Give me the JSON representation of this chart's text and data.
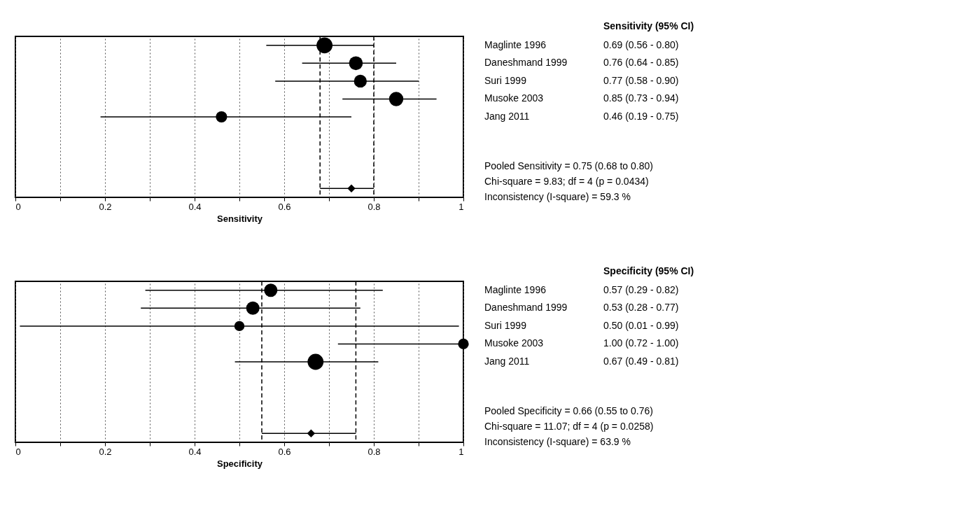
{
  "chart_data": [
    {
      "type": "scatter",
      "orientation": "horizontal",
      "xlabel": "Sensitivity",
      "categories": [
        "Maglinte 1996",
        "Daneshmand 1999",
        "Suri 1999",
        "Musoke 2003",
        "Jang 2011",
        null,
        null,
        null,
        null
      ],
      "series": [
        {
          "type": "bubble",
          "color": "#000000",
          "marker": "circle",
          "values": [
            0.69,
            0.76,
            0.77,
            0.85,
            0.46,
            null,
            null,
            null,
            null
          ],
          "sizes": [
            1,
            0.75,
            0.65,
            0.8,
            0.5,
            null,
            null,
            null,
            null
          ],
          "errors": [
            [
              0.56,
              0.8
            ],
            [
              0.64,
              0.85
            ],
            [
              0.58,
              0.9
            ],
            [
              0.73,
              0.94
            ],
            [
              0.19,
              0.75
            ],
            null,
            null,
            null,
            null
          ],
          "value_labels": [
            "0.69    (0.56 - 0.80)",
            "0.76    (0.64 - 0.85)",
            "0.77    (0.58 - 0.90)",
            "0.85    (0.73 - 0.94)",
            "0.46    (0.19 - 0.75)",
            null,
            null,
            null,
            null
          ]
        },
        {
          "type": "scatter",
          "color": "#000000",
          "marker": "diamond",
          "values": [
            null,
            null,
            null,
            null,
            null,
            null,
            null,
            null,
            0.75
          ],
          "errors": [
            null,
            null,
            null,
            null,
            null,
            null,
            null,
            null,
            [
              0.68,
              0.8
            ]
          ]
        }
      ],
      "xlim": [
        0,
        1
      ],
      "xticks": [
        0,
        {
          "value": 0.1,
          "label": null
        },
        0.2,
        {
          "value": 0.3,
          "label": null
        },
        0.4,
        {
          "value": 0.5,
          "label": null
        },
        0.6,
        {
          "value": 0.7,
          "label": null
        },
        0.8,
        {
          "value": 0.9,
          "label": null
        },
        1
      ],
      "grid": "x",
      "tick_labels": "x",
      "ref_lines": [
        {
          "axis": "x",
          "value": 0.68,
          "line_style": "dashed",
          "color": "#000000"
        },
        {
          "axis": "x",
          "value": 0.8,
          "line_style": "dashed",
          "color": "#000000"
        }
      ],
      "annotations": [
        "Sensitivity (95% CI)",
        "Pooled Sensitivity = 0.75 (0.68 to 0.80)",
        "Chi-square = 9.83; df =  4 (p = 0.0434)",
        "Inconsistency (I-square) = 59.3 %"
      ]
    },
    {
      "type": "scatter",
      "orientation": "horizontal",
      "xlabel": "Specificity",
      "categories": [
        "Maglinte 1996",
        "Daneshmand 1999",
        "Suri 1999",
        "Musoke 2003",
        "Jang 2011",
        null,
        null,
        null,
        null
      ],
      "series": [
        {
          "type": "bubble",
          "color": "#000000",
          "marker": "circle",
          "values": [
            0.57,
            0.53,
            0.5,
            1.0,
            0.67,
            null,
            null,
            null,
            null
          ],
          "sizes": [
            0.7,
            0.7,
            0.4,
            0.45,
            1,
            null,
            null,
            null,
            null
          ],
          "errors": [
            [
              0.29,
              0.82
            ],
            [
              0.28,
              0.77
            ],
            [
              0.01,
              0.99
            ],
            [
              0.72,
              1.0
            ],
            [
              0.49,
              0.81
            ],
            null,
            null,
            null,
            null
          ],
          "value_labels": [
            "0.57    (0.29 - 0.82)",
            "0.53    (0.28 - 0.77)",
            "0.50    (0.01 - 0.99)",
            "1.00    (0.72 - 1.00)",
            "0.67    (0.49 - 0.81)",
            null,
            null,
            null,
            null
          ]
        },
        {
          "type": "scatter",
          "color": "#000000",
          "marker": "diamond",
          "values": [
            null,
            null,
            null,
            null,
            null,
            null,
            null,
            null,
            0.66
          ],
          "errors": [
            null,
            null,
            null,
            null,
            null,
            null,
            null,
            null,
            [
              0.55,
              0.76
            ]
          ]
        }
      ],
      "xlim": [
        0,
        1
      ],
      "xticks": [
        0,
        {
          "value": 0.1,
          "label": null
        },
        0.2,
        {
          "value": 0.3,
          "label": null
        },
        0.4,
        {
          "value": 0.5,
          "label": null
        },
        0.6,
        {
          "value": 0.7,
          "label": null
        },
        0.8,
        {
          "value": 0.9,
          "label": null
        },
        1
      ],
      "grid": "x",
      "tick_labels": "x",
      "ref_lines": [
        {
          "axis": "x",
          "value": 0.55,
          "line_style": "dashed",
          "color": "#000000"
        },
        {
          "axis": "x",
          "value": 0.76,
          "line_style": "dashed",
          "color": "#000000"
        }
      ],
      "annotations": [
        "Specificity (95% CI)",
        "Pooled Specificity = 0.66 (0.55 to 0.76)",
        "Chi-square = 11.07; df =  4 (p = 0.0258)",
        "Inconsistency (I-square) = 63.9 %"
      ]
    }
  ]
}
